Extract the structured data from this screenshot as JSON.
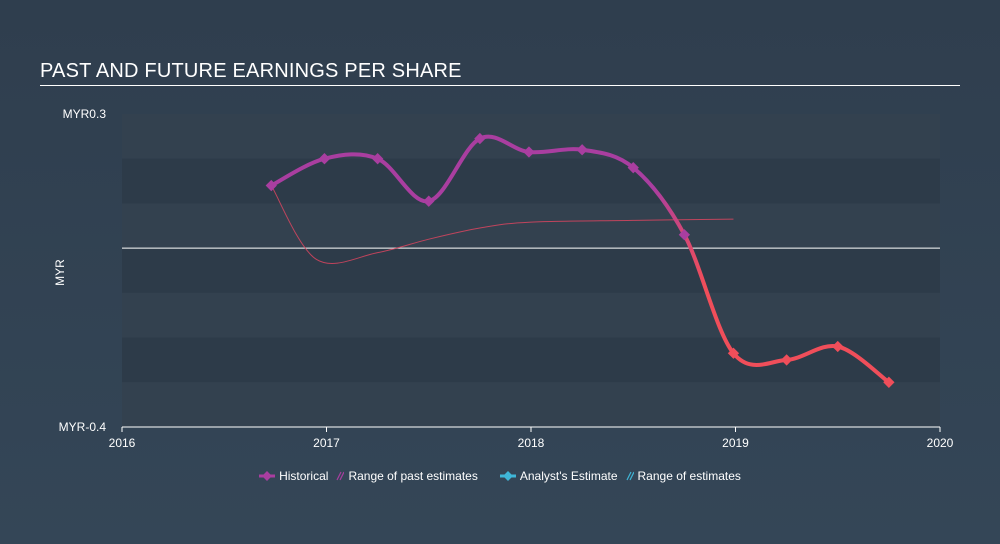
{
  "chart_data": {
    "type": "line",
    "title": "PAST AND FUTURE EARNINGS PER SHARE",
    "ylabel": "MYR",
    "y_tick_labels": [
      "MYR0.3",
      "MYR-0.4"
    ],
    "x_tick_labels": [
      "2016",
      "2017",
      "2018",
      "2019",
      "2020"
    ],
    "xlim": [
      2016,
      2020
    ],
    "ylim": [
      -0.4,
      0.3
    ],
    "zero_line": true,
    "series": [
      {
        "name": "Historical",
        "color_past": "#a93ea0",
        "color_recent": "#f04e5a",
        "points": [
          {
            "x": 2016.73,
            "y": 0.14
          },
          {
            "x": 2016.99,
            "y": 0.2
          },
          {
            "x": 2017.25,
            "y": 0.2
          },
          {
            "x": 2017.5,
            "y": 0.105
          },
          {
            "x": 2017.75,
            "y": 0.245
          },
          {
            "x": 2017.99,
            "y": 0.215
          },
          {
            "x": 2018.25,
            "y": 0.22
          },
          {
            "x": 2018.5,
            "y": 0.18
          },
          {
            "x": 2018.75,
            "y": 0.03
          },
          {
            "x": 2018.99,
            "y": -0.235
          },
          {
            "x": 2019.25,
            "y": -0.25
          },
          {
            "x": 2019.5,
            "y": -0.22
          },
          {
            "x": 2019.75,
            "y": -0.3
          }
        ]
      },
      {
        "name": "Range of past estimates",
        "color": "#d9455f",
        "points": [
          {
            "x": 2016.73,
            "y": 0.14
          },
          {
            "x": 2016.95,
            "y": -0.025
          },
          {
            "x": 2017.25,
            "y": -0.01
          },
          {
            "x": 2017.5,
            "y": 0.02
          },
          {
            "x": 2017.75,
            "y": 0.045
          },
          {
            "x": 2017.99,
            "y": 0.058
          },
          {
            "x": 2018.5,
            "y": 0.062
          },
          {
            "x": 2018.99,
            "y": 0.065
          }
        ]
      }
    ],
    "legend": [
      {
        "label": "Historical",
        "color": "#a93ea0",
        "marker": "diamond"
      },
      {
        "label": "Range of past estimates",
        "color": "#a93ea0",
        "marker": "slash"
      },
      {
        "label": "Analyst's Estimate",
        "color": "#3fb6d8",
        "marker": "diamond"
      },
      {
        "label": "Range of estimates",
        "color": "#3fb6d8",
        "marker": "slash"
      }
    ],
    "legend_position": "bottom-center"
  }
}
